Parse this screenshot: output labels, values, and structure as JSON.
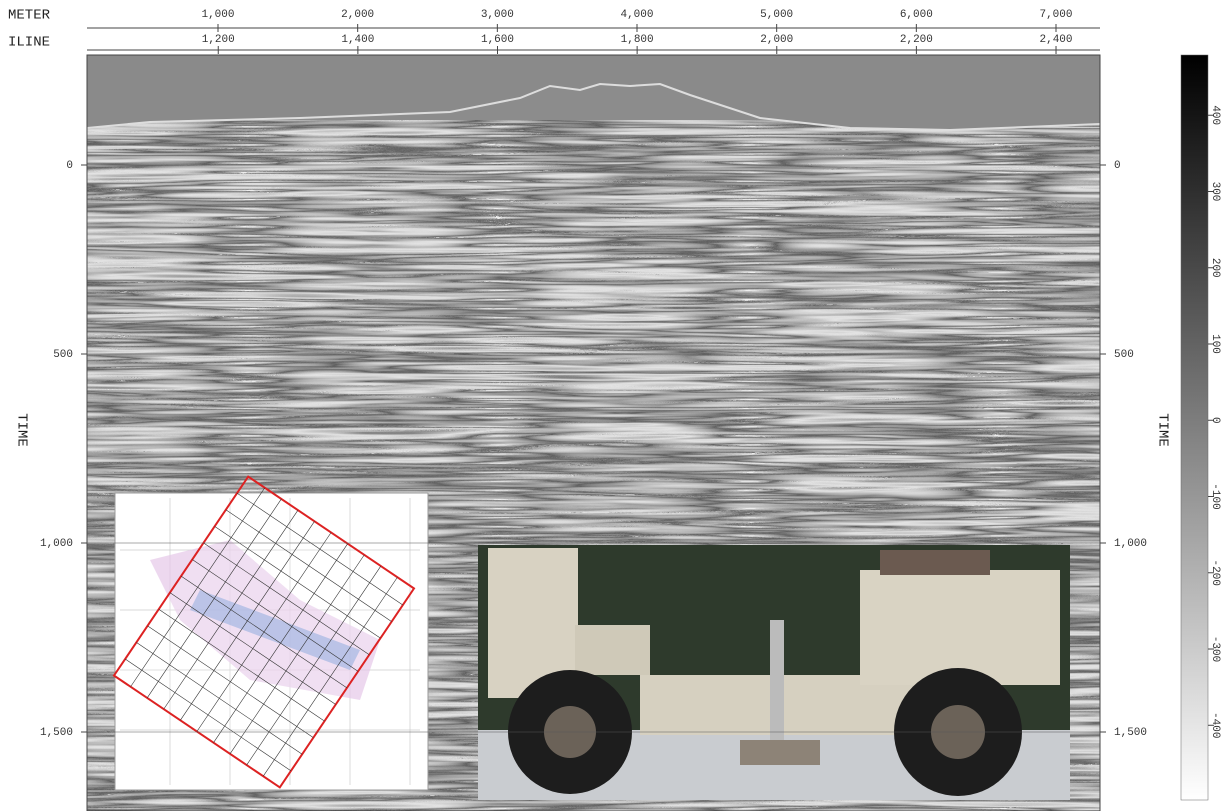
{
  "chart_data": {
    "type": "seismic",
    "x_axis_label": "METER",
    "x2_axis_label": "ILINE",
    "y_axis_label": "TIME",
    "y2_axis_label": "TIME",
    "xlim": [
      62,
      7315
    ],
    "xticks": [
      {
        "value": 1000,
        "label": "1,000"
      },
      {
        "value": 2000,
        "label": "2,000"
      },
      {
        "value": 3000,
        "label": "3,000"
      },
      {
        "value": 4000,
        "label": "4,000"
      },
      {
        "value": 5000,
        "label": "5,000"
      },
      {
        "value": 6000,
        "label": "6,000"
      },
      {
        "value": 7000,
        "label": "7,000"
      }
    ],
    "x2lim": [
      1012,
      2463
    ],
    "x2ticks": [
      {
        "value": 1200,
        "label": "1,200"
      },
      {
        "value": 1400,
        "label": "1,400"
      },
      {
        "value": 1600,
        "label": "1,600"
      },
      {
        "value": 1800,
        "label": "1,800"
      },
      {
        "value": 2000,
        "label": "2,000"
      },
      {
        "value": 2200,
        "label": "2,200"
      },
      {
        "value": 2400,
        "label": "2,400"
      }
    ],
    "ylim": [
      -291,
      1709
    ],
    "yticks": [
      0,
      500,
      {
        "value": 1000,
        "label": "1,000"
      },
      {
        "value": 1500,
        "label": "1,500"
      }
    ],
    "colorbar": {
      "lim": [
        -498,
        479
      ],
      "ticks": [
        400,
        300,
        200,
        100,
        0,
        -100,
        -200,
        -300,
        -400
      ],
      "colors": [
        "#ffffff",
        "#000000"
      ]
    }
  }
}
